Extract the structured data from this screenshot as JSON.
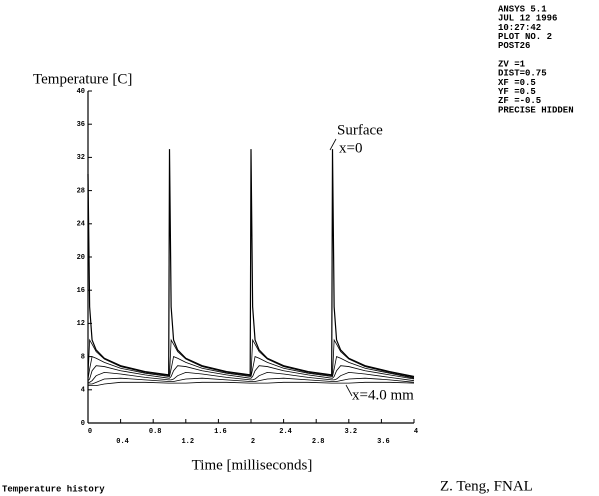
{
  "chart_data": {
    "type": "line",
    "y_label": "Temperature [C]",
    "x_label": "Time [milliseconds]",
    "annotations": [
      "Surface",
      "x=0",
      "x=4.0 mm"
    ],
    "info_lines": [
      "ANSYS 5.1",
      "JUL 12 1996",
      "10:27:42",
      "PLOT NO.   2",
      "POST26",
      "ZV  =1",
      "DIST=0.75",
      "XF  =0.5",
      "YF  =0.5",
      "ZF  =-0.5",
      "PRECISE HIDDEN"
    ],
    "footer_left": "Temperature history",
    "footer_right": "Z. Teng, FNAL",
    "xlim": [
      0,
      4
    ],
    "xticks": [
      0,
      0.4,
      0.8,
      1.2,
      1.6,
      2,
      2.4,
      2.8,
      3.2,
      3.6,
      4
    ],
    "ylim": [
      0,
      40
    ],
    "yticks": [
      0,
      4,
      8,
      12,
      16,
      20,
      24,
      28,
      32,
      36,
      40
    ],
    "grid": false,
    "x": [
      0,
      0.02,
      0.05,
      0.1,
      0.2,
      0.4,
      0.7,
      0.99,
      1,
      1.02,
      1.05,
      1.1,
      1.2,
      1.4,
      1.7,
      1.99,
      2,
      2.02,
      2.05,
      2.1,
      2.2,
      2.4,
      2.7,
      2.99,
      3,
      3.02,
      3.05,
      3.1,
      3.2,
      3.4,
      3.7,
      4
    ],
    "series": [
      {
        "color": "#000000",
        "values": [
          30,
          14,
          10,
          8.8,
          7.8,
          6.9,
          6.2,
          5.8,
          33,
          14,
          10,
          8.8,
          7.8,
          6.9,
          6.2,
          5.8,
          33,
          14,
          10,
          8.8,
          7.8,
          6.9,
          6.2,
          5.8,
          33,
          14,
          10,
          8.8,
          7.8,
          6.9,
          6.2,
          5.6
        ]
      },
      {
        "color": "#000000",
        "values": [
          5.5,
          10,
          9.5,
          8.6,
          7.7,
          6.8,
          6.1,
          5.7,
          5.7,
          10,
          9.5,
          8.6,
          7.7,
          6.8,
          6.1,
          5.7,
          5.7,
          10,
          9.5,
          8.6,
          7.7,
          6.8,
          6.1,
          5.7,
          5.7,
          10,
          9.5,
          8.6,
          7.7,
          6.8,
          6.1,
          5.5
        ]
      },
      {
        "color": "#000000",
        "values": [
          5.3,
          6.5,
          8,
          7.8,
          7.3,
          6.6,
          6,
          5.6,
          5.6,
          6.5,
          8,
          7.8,
          7.3,
          6.6,
          6,
          5.6,
          5.6,
          6.5,
          8,
          7.8,
          7.3,
          6.6,
          6,
          5.6,
          5.6,
          6.5,
          8,
          7.8,
          7.3,
          6.6,
          6,
          5.4
        ]
      },
      {
        "color": "#000000",
        "values": [
          5.1,
          5.3,
          6.3,
          6.9,
          6.8,
          6.3,
          5.8,
          5.4,
          5.4,
          5.6,
          6.3,
          6.9,
          6.8,
          6.3,
          5.8,
          5.4,
          5.4,
          5.6,
          6.3,
          6.9,
          6.8,
          6.3,
          5.8,
          5.4,
          5.4,
          5.6,
          6.3,
          6.9,
          6.8,
          6.3,
          5.8,
          5.3
        ]
      },
      {
        "color": "#000000",
        "values": [
          4.9,
          4.9,
          5.1,
          5.7,
          6.1,
          5.9,
          5.5,
          5.2,
          5.2,
          5.2,
          5.3,
          5.7,
          6.1,
          5.9,
          5.5,
          5.2,
          5.2,
          5.2,
          5.3,
          5.7,
          6.1,
          5.9,
          5.5,
          5.2,
          5.2,
          5.2,
          5.3,
          5.7,
          6.1,
          5.9,
          5.5,
          5.1
        ]
      },
      {
        "color": "#000000",
        "values": [
          4.7,
          4.7,
          4.7,
          4.9,
          5.3,
          5.4,
          5.2,
          5,
          5,
          5,
          5,
          5.1,
          5.3,
          5.4,
          5.2,
          5,
          5,
          5,
          5,
          5.1,
          5.3,
          5.4,
          5.2,
          5,
          5,
          5,
          5,
          5.1,
          5.3,
          5.4,
          5.2,
          4.9
        ]
      },
      {
        "color": "#000000",
        "values": [
          4.5,
          4.5,
          4.5,
          4.5,
          4.7,
          4.9,
          4.9,
          4.8,
          4.8,
          4.8,
          4.8,
          4.8,
          4.8,
          4.9,
          4.9,
          4.8,
          4.8,
          4.8,
          4.8,
          4.8,
          4.8,
          4.9,
          4.9,
          4.8,
          4.8,
          4.8,
          4.8,
          4.8,
          4.8,
          4.9,
          4.9,
          4.8
        ]
      }
    ]
  }
}
